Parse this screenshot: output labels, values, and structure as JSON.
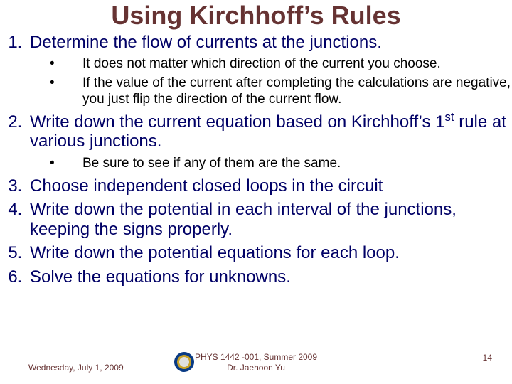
{
  "title": {
    "text": "Using Kirchhoff’s Rules",
    "color": "#663333",
    "fontsize": 36
  },
  "items": [
    {
      "text": "Determine the flow of currents at the junctions.",
      "color": "#000066",
      "sub": [
        {
          "text": "It does not matter which direction of the current you choose.",
          "color": "#000000"
        },
        {
          "text": "If the value of the current after completing the calculations are negative, you just flip the direction of the current flow.",
          "color": "#000000"
        }
      ]
    },
    {
      "text_html": "Write down the current equation based on Kirchhoff’s 1<sup>st</sup> rule at various junctions.",
      "color": "#000066",
      "sub": [
        {
          "text": "Be sure to see if any of them are the same.",
          "color": "#000000"
        }
      ]
    },
    {
      "text": "Choose independent closed loops in the circuit",
      "color": "#000066"
    },
    {
      "text": "Write down the potential in each interval of the junctions, keeping the signs properly.",
      "color": "#000066"
    },
    {
      "text": "Write down the potential equations for each loop.",
      "color": "#000066"
    },
    {
      "text": "Solve the equations for unknowns.",
      "color": "#000066"
    }
  ],
  "footer": {
    "date": "Wednesday, July 1, 2009",
    "center_line1": "PHYS 1442 -001, Summer 2009",
    "center_line2": "Dr. Jaehoon Yu",
    "page": "14",
    "color": "#663333",
    "fontsize": 12
  },
  "logo": {
    "outer_color": "#0a3b85",
    "inner_color": "#e0e0e0",
    "ring_color": "#c9a227"
  },
  "background_color": "#ffffff"
}
